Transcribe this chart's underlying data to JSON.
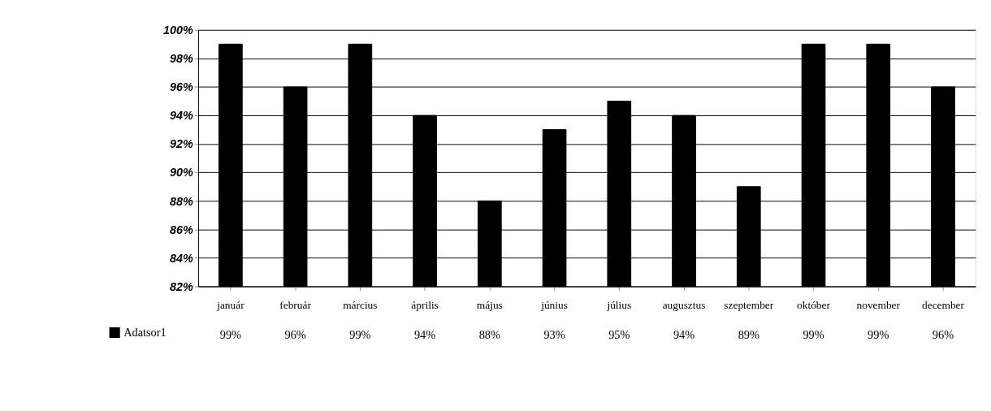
{
  "chart_data": {
    "type": "bar",
    "categories": [
      "január",
      "február",
      "március",
      "április",
      "május",
      "június",
      "július",
      "augusztus",
      "szeptember",
      "október",
      "november",
      "december"
    ],
    "series": [
      {
        "name": "Adatsor1",
        "color": "#000000",
        "values": [
          99,
          96,
          99,
          94,
          88,
          93,
          95,
          94,
          89,
          99,
          99,
          96
        ],
        "value_labels": [
          "99%",
          "96%",
          "99%",
          "94%",
          "88%",
          "93%",
          "95%",
          "94%",
          "89%",
          "99%",
          "99%",
          "96%"
        ]
      }
    ],
    "ylim": [
      82,
      100
    ],
    "yticks": [
      {
        "value": 82,
        "label": "82%"
      },
      {
        "value": 84,
        "label": "84%"
      },
      {
        "value": 86,
        "label": "86%"
      },
      {
        "value": 88,
        "label": "88%"
      },
      {
        "value": 90,
        "label": "90%"
      },
      {
        "value": 92,
        "label": "92%"
      },
      {
        "value": 94,
        "label": "94%"
      },
      {
        "value": 96,
        "label": "96%"
      },
      {
        "value": 98,
        "label": "98%"
      },
      {
        "value": 100,
        "label": "100%"
      }
    ],
    "grid": "y",
    "legend": "bottom left"
  }
}
